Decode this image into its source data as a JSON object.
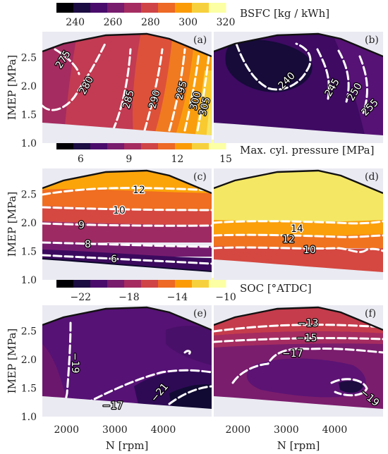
{
  "chart_data": {
    "type": "heatmap",
    "layout": "3 rows x 2 columns of contour plots sharing axes",
    "xlabel": "N [rpm]",
    "ylabel": "IMEP [MPa]",
    "xlim": [
      1500,
      5000
    ],
    "ylim": [
      1.0,
      2.95
    ],
    "xticks": [
      2000,
      3000,
      4000
    ],
    "yticks": [
      1.0,
      1.5,
      2.0,
      2.5
    ],
    "colormap": "inferno",
    "colors": [
      "#000004",
      "#1b0c41",
      "#4a0c6b",
      "#781c6d",
      "#a52c60",
      "#cf4446",
      "#ed6925",
      "#fb9b06",
      "#f7d13d",
      "#fcffa4"
    ],
    "full_load_curve": [
      [
        1500,
        2.57
      ],
      [
        2000,
        2.8
      ],
      [
        3000,
        2.85
      ],
      [
        3500,
        2.88
      ],
      [
        4000,
        2.77
      ],
      [
        5000,
        2.52
      ]
    ],
    "rows": [
      {
        "colorbar": {
          "title": "BSFC [kg / kWh]",
          "ticks": [
            240,
            260,
            280,
            300,
            320
          ],
          "range": [
            230,
            320
          ]
        },
        "panels": [
          {
            "label": "(a)",
            "contour_labels": [
              "275",
              "280",
              "285",
              "290",
              "295",
              "300",
              "305"
            ]
          },
          {
            "label": "(b)",
            "contour_labels": [
              "240",
              "245",
              "250",
              "255"
            ]
          }
        ]
      },
      {
        "colorbar": {
          "title": "Max. cyl. pressure [MPa]",
          "ticks": [
            6,
            9,
            12,
            15
          ],
          "range": [
            4.5,
            15
          ]
        },
        "panels": [
          {
            "label": "(c)",
            "contour_labels": [
              "12",
              "10",
              "9",
              "8",
              "6"
            ]
          },
          {
            "label": "(d)",
            "contour_labels": [
              "14",
              "12",
              "10"
            ]
          }
        ]
      },
      {
        "colorbar": {
          "title": "SOC [°ATDC]",
          "ticks": [
            -22,
            -18,
            -14,
            -10
          ],
          "range": [
            -24,
            -10
          ]
        },
        "panels": [
          {
            "label": "(e)",
            "contour_labels": [
              "-19",
              "-21",
              "-17"
            ]
          },
          {
            "label": "(f)",
            "contour_labels": [
              "-13",
              "-15",
              "-17",
              "-19"
            ]
          }
        ]
      }
    ]
  }
}
